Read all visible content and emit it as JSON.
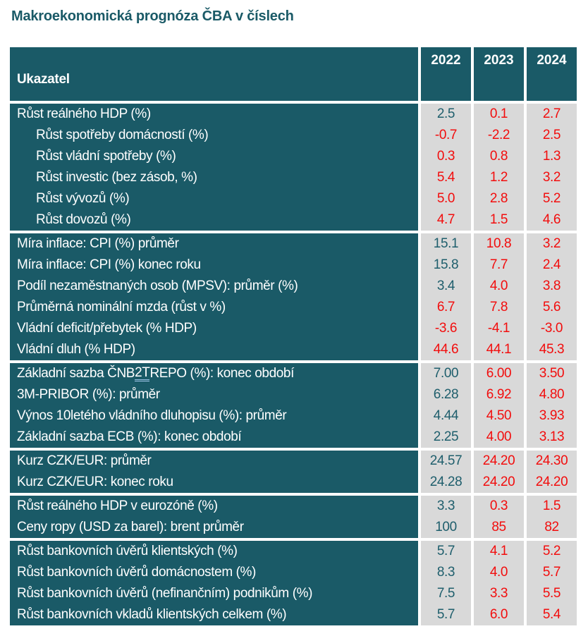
{
  "page": {
    "title": "Makroekonomická prognóza ČBA v číslech"
  },
  "colors": {
    "teal_bg": "#1A5A67",
    "teal_text": "#1E5E6C",
    "grey_bg": "#D9D9D9",
    "red_text": "#F20D0D",
    "white_text": "#FFFFFF",
    "underline_blue": "#9DC3E6"
  },
  "table": {
    "header": {
      "indicator_label": "Ukazatel",
      "years": [
        "2022",
        "2023",
        "2024"
      ]
    },
    "groups": [
      {
        "rows": [
          {
            "label": "Růst reálného HDP (%)",
            "indent": false,
            "values": [
              {
                "text": "2.5",
                "color": "teal"
              },
              {
                "text": "0.1",
                "color": "red"
              },
              {
                "text": "2.7",
                "color": "red"
              }
            ]
          },
          {
            "label": "Růst spotřeby domácností (%)",
            "indent": true,
            "values": [
              {
                "text": "-0.7",
                "color": "red"
              },
              {
                "text": "-2.2",
                "color": "red"
              },
              {
                "text": "2.5",
                "color": "red"
              }
            ]
          },
          {
            "label": "Růst vládní spotřeby (%)",
            "indent": true,
            "values": [
              {
                "text": "0.3",
                "color": "red"
              },
              {
                "text": "0.8",
                "color": "red"
              },
              {
                "text": "1.3",
                "color": "red"
              }
            ]
          },
          {
            "label": "Růst investic (bez zásob, %)",
            "indent": true,
            "values": [
              {
                "text": "5.4",
                "color": "red"
              },
              {
                "text": "1.2",
                "color": "red"
              },
              {
                "text": "3.2",
                "color": "red"
              }
            ]
          },
          {
            "label": "Růst vývozů (%)",
            "indent": true,
            "values": [
              {
                "text": "5.0",
                "color": "red"
              },
              {
                "text": "2.8",
                "color": "red"
              },
              {
                "text": "5.2",
                "color": "red"
              }
            ]
          },
          {
            "label": "Růst dovozů (%)",
            "indent": true,
            "values": [
              {
                "text": "4.7",
                "color": "red"
              },
              {
                "text": "1.5",
                "color": "red"
              },
              {
                "text": "4.6",
                "color": "red"
              }
            ]
          }
        ]
      },
      {
        "rows": [
          {
            "label": "Míra inflace: CPI (%) průměr",
            "indent": false,
            "values": [
              {
                "text": "15.1",
                "color": "teal"
              },
              {
                "text": "10.8",
                "color": "red"
              },
              {
                "text": "3.2",
                "color": "red"
              }
            ]
          },
          {
            "label": "Míra inflace: CPI (%) konec roku",
            "indent": false,
            "values": [
              {
                "text": "15.8",
                "color": "teal"
              },
              {
                "text": "7.7",
                "color": "red"
              },
              {
                "text": "2.4",
                "color": "red"
              }
            ]
          },
          {
            "label": "Podíl nezaměstnaných osob (MPSV): průměr (%)",
            "indent": false,
            "values": [
              {
                "text": "3.4",
                "color": "teal"
              },
              {
                "text": "4.0",
                "color": "red"
              },
              {
                "text": "3.8",
                "color": "red"
              }
            ]
          },
          {
            "label": "Průměrná nominální mzda (růst v %)",
            "indent": false,
            "values": [
              {
                "text": "6.7",
                "color": "red"
              },
              {
                "text": "7.8",
                "color": "red"
              },
              {
                "text": "5.6",
                "color": "red"
              }
            ]
          },
          {
            "label": "Vládní deficit/přebytek (% HDP)",
            "indent": false,
            "values": [
              {
                "text": "-3.6",
                "color": "red"
              },
              {
                "text": "-4.1",
                "color": "red"
              },
              {
                "text": "-3.0",
                "color": "red"
              }
            ]
          },
          {
            "label": "Vládní dluh (% HDP)",
            "indent": false,
            "values": [
              {
                "text": "44.6",
                "color": "red"
              },
              {
                "text": "44.1",
                "color": "red"
              },
              {
                "text": "45.3",
                "color": "red"
              }
            ]
          }
        ]
      },
      {
        "rows": [
          {
            "label": "Základní sazba ČNB 2T REPO (%): konec období",
            "indent": false,
            "underline_term": "2T",
            "values": [
              {
                "text": "7.00",
                "color": "teal"
              },
              {
                "text": "6.00",
                "color": "red"
              },
              {
                "text": "3.50",
                "color": "red"
              }
            ]
          },
          {
            "label": "3M-PRIBOR (%): průměr",
            "indent": false,
            "values": [
              {
                "text": "6.28",
                "color": "teal"
              },
              {
                "text": "6.92",
                "color": "red"
              },
              {
                "text": "4.80",
                "color": "red"
              }
            ]
          },
          {
            "label": "Výnos 10letého vládního dluhopisu (%): průměr",
            "indent": false,
            "values": [
              {
                "text": "4.44",
                "color": "teal"
              },
              {
                "text": "4.50",
                "color": "red"
              },
              {
                "text": "3.93",
                "color": "red"
              }
            ]
          },
          {
            "label": "Základní sazba ECB (%): konec období",
            "indent": false,
            "values": [
              {
                "text": "2.25",
                "color": "teal"
              },
              {
                "text": "4.00",
                "color": "red"
              },
              {
                "text": "3.13",
                "color": "red"
              }
            ]
          }
        ]
      },
      {
        "rows": [
          {
            "label": "Kurz CZK/EUR: průměr",
            "indent": false,
            "values": [
              {
                "text": "24.57",
                "color": "teal"
              },
              {
                "text": "24.20",
                "color": "red"
              },
              {
                "text": "24.30",
                "color": "red"
              }
            ]
          },
          {
            "label": "Kurz CZK/EUR: konec roku",
            "indent": false,
            "values": [
              {
                "text": "24.28",
                "color": "teal"
              },
              {
                "text": "24.20",
                "color": "red"
              },
              {
                "text": "24.20",
                "color": "red"
              }
            ]
          }
        ]
      },
      {
        "rows": [
          {
            "label": "Růst reálného HDP v eurozóně (%)",
            "indent": false,
            "values": [
              {
                "text": "3.3",
                "color": "teal"
              },
              {
                "text": "0.3",
                "color": "red"
              },
              {
                "text": "1.5",
                "color": "red"
              }
            ]
          },
          {
            "label": "Ceny ropy (USD za barel): brent průměr",
            "indent": false,
            "values": [
              {
                "text": "100",
                "color": "teal"
              },
              {
                "text": "85",
                "color": "red"
              },
              {
                "text": "82",
                "color": "red"
              }
            ]
          }
        ]
      },
      {
        "rows": [
          {
            "label": "Růst bankovních úvěrů klientských (%)",
            "indent": false,
            "values": [
              {
                "text": "5.7",
                "color": "teal"
              },
              {
                "text": "4.1",
                "color": "red"
              },
              {
                "text": "5.2",
                "color": "red"
              }
            ]
          },
          {
            "label": "Růst bankovních úvěrů domácnostem (%)",
            "indent": false,
            "values": [
              {
                "text": "8.3",
                "color": "teal"
              },
              {
                "text": "4.0",
                "color": "red"
              },
              {
                "text": "5.7",
                "color": "red"
              }
            ]
          },
          {
            "label": "Růst bankovních úvěrů (nefinančním) podnikům (%)",
            "indent": false,
            "values": [
              {
                "text": "7.5",
                "color": "teal"
              },
              {
                "text": "3.3",
                "color": "red"
              },
              {
                "text": "5.5",
                "color": "red"
              }
            ]
          },
          {
            "label": "Růst bankovních vkladů klientských celkem (%)",
            "indent": false,
            "values": [
              {
                "text": "5.7",
                "color": "teal"
              },
              {
                "text": "6.0",
                "color": "red"
              },
              {
                "text": "5.4",
                "color": "red"
              }
            ]
          }
        ]
      }
    ]
  }
}
